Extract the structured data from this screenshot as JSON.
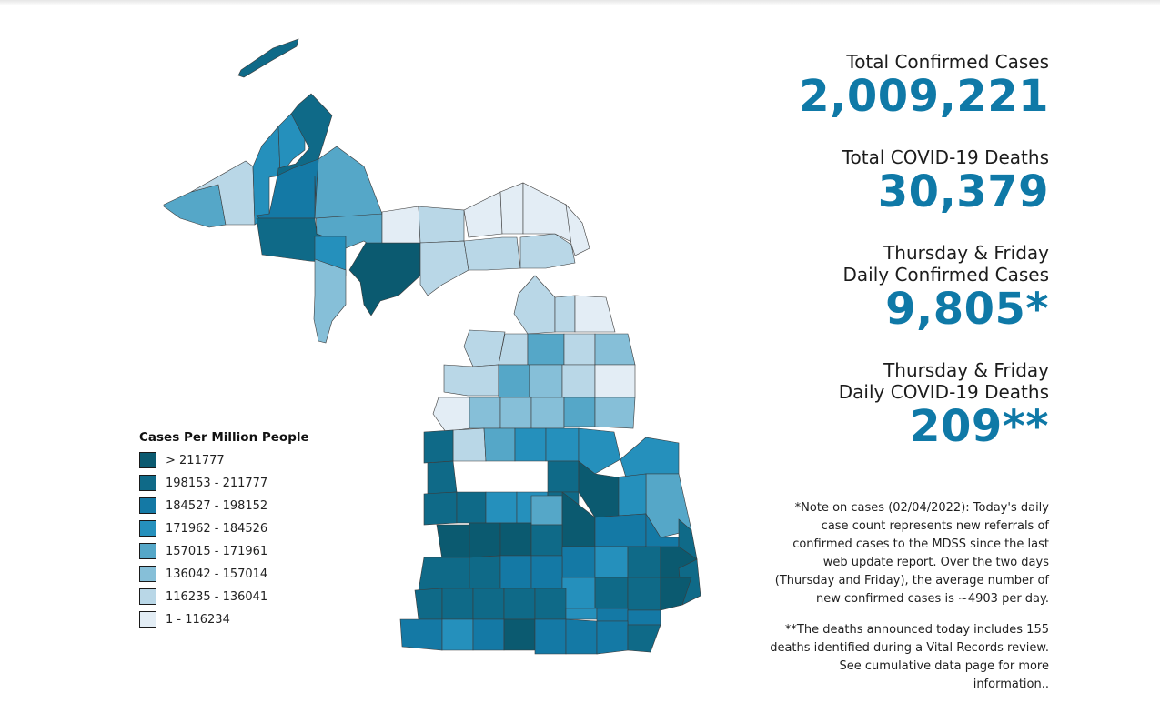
{
  "stats": [
    {
      "label": "Total Confirmed Cases",
      "value": "2,009,221"
    },
    {
      "label": "Total COVID-19 Deaths",
      "value": "30,379"
    },
    {
      "label": "Thursday & Friday\nDaily Confirmed Cases",
      "value": "9,805*"
    },
    {
      "label": "Thursday & Friday\nDaily COVID-19 Deaths",
      "value": "209**"
    }
  ],
  "notes": {
    "cases_note": "*Note on cases (02/04/2022): Today's daily case count represents new referrals of confirmed cases to the MDSS since the last web update report.  Over the two days (Thursday and Friday), the average number of new confirmed cases is ~4903 per day.",
    "deaths_note": "**The deaths announced today includes 155 deaths identified during a Vital Records review. See cumulative data page for more information.."
  },
  "legend": {
    "title": "Cases Per Million People",
    "items": [
      {
        "label": "> 211777",
        "color": "#0b5a70"
      },
      {
        "label": "198153 - 211777",
        "color": "#0f6a88"
      },
      {
        "label": "184527 - 198152",
        "color": "#1479a5"
      },
      {
        "label": "171962 - 184526",
        "color": "#2590bc"
      },
      {
        "label": "157015 - 171961",
        "color": "#55a7c8"
      },
      {
        "label": "136042 - 157014",
        "color": "#86bfd8"
      },
      {
        "label": "116235 - 136041",
        "color": "#b9d7e7"
      },
      {
        "label": "1 - 116234",
        "color": "#e3edf5"
      }
    ]
  },
  "map": {
    "class_colors": [
      "#0b5a70",
      "#0f6a88",
      "#1479a5",
      "#2590bc",
      "#55a7c8",
      "#86bfd8",
      "#b9d7e7",
      "#e3edf5"
    ]
  }
}
